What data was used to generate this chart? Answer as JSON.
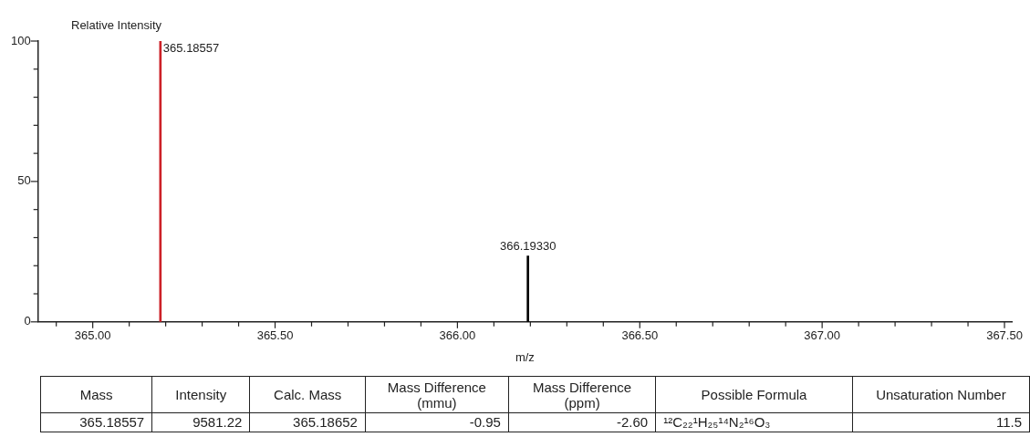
{
  "chart_data": {
    "type": "bar",
    "xlabel": "m/z",
    "ylabel": "Relative Intensity",
    "x": [
      365.18557,
      366.1933
    ],
    "values": [
      100,
      23.5
    ],
    "colors": [
      "#cc2128",
      "#000000"
    ],
    "xlim": [
      364.85,
      367.52
    ],
    "xticks": [
      {
        "value": 364.9,
        "label": null
      },
      {
        "value": 365.0,
        "label": "365.00"
      },
      {
        "value": 365.1,
        "label": null
      },
      {
        "value": 365.2,
        "label": null
      },
      {
        "value": 365.3,
        "label": null
      },
      {
        "value": 365.4,
        "label": null
      },
      {
        "value": 365.5,
        "label": "365.50"
      },
      {
        "value": 365.6,
        "label": null
      },
      {
        "value": 365.7,
        "label": null
      },
      {
        "value": 365.8,
        "label": null
      },
      {
        "value": 365.9,
        "label": null
      },
      {
        "value": 366.0,
        "label": "366.00"
      },
      {
        "value": 366.1,
        "label": null
      },
      {
        "value": 366.2,
        "label": null
      },
      {
        "value": 366.3,
        "label": null
      },
      {
        "value": 366.4,
        "label": null
      },
      {
        "value": 366.5,
        "label": "366.50"
      },
      {
        "value": 366.6,
        "label": null
      },
      {
        "value": 366.7,
        "label": null
      },
      {
        "value": 366.8,
        "label": null
      },
      {
        "value": 366.9,
        "label": null
      },
      {
        "value": 367.0,
        "label": "367.00"
      },
      {
        "value": 367.1,
        "label": null
      },
      {
        "value": 367.2,
        "label": null
      },
      {
        "value": 367.3,
        "label": null
      },
      {
        "value": 367.4,
        "label": null
      },
      {
        "value": 367.5,
        "label": "367.50"
      }
    ],
    "ylim": [
      0,
      100
    ],
    "yticks": [
      0,
      {
        "value": 10,
        "label": null
      },
      {
        "value": 20,
        "label": null
      },
      {
        "value": 30,
        "label": null
      },
      {
        "value": 40,
        "label": null
      },
      50,
      {
        "value": 60,
        "label": null
      },
      {
        "value": 70,
        "label": null
      },
      {
        "value": 80,
        "label": null
      },
      {
        "value": 90,
        "label": null
      },
      100
    ],
    "grid": false,
    "annotations": [
      {
        "text": "365.18557",
        "x": 365.18557,
        "y": 100
      },
      {
        "text": "366.19330",
        "x": 366.1933,
        "y": 23.5
      },
      "Mass",
      "Intensity",
      "Calc. Mass",
      "Mass Difference (mmu)",
      "Mass Difference (ppm)",
      "Possible Formula",
      "Unsaturation Number",
      "365.18557",
      "9581.22",
      "365.18652",
      "-0.95",
      "-2.60",
      "¹²C₂₂¹H₂₅¹⁴N₂¹⁶O₃",
      "11.5"
    ]
  }
}
